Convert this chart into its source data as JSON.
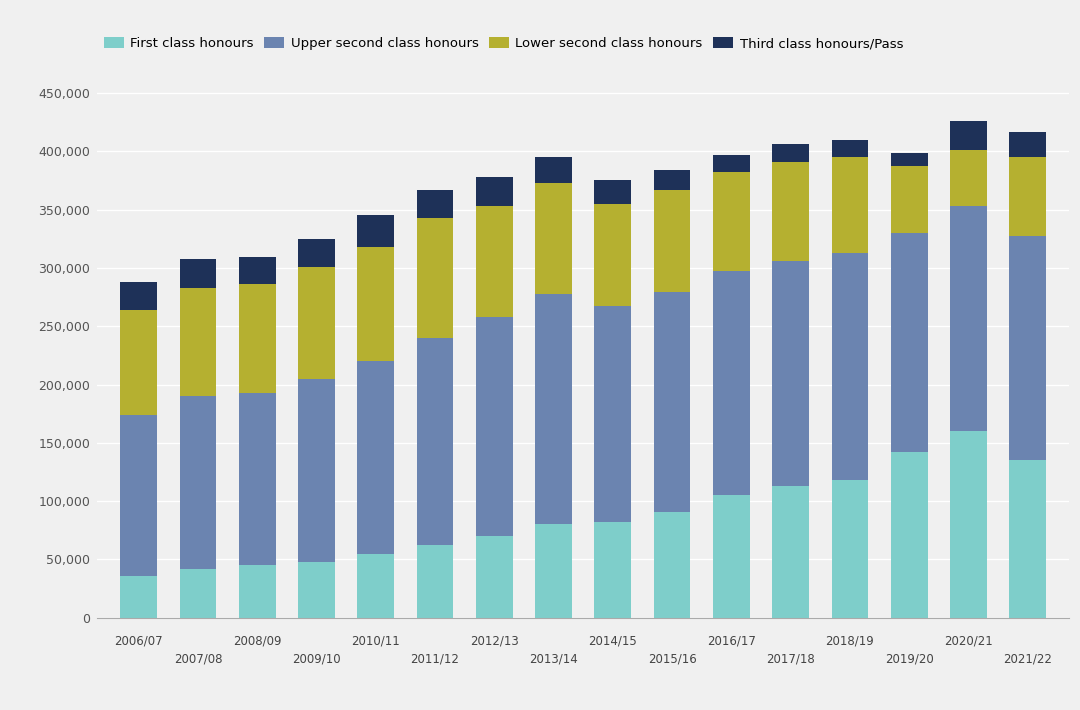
{
  "years": [
    "2006/07",
    "2007/08",
    "2008/09",
    "2009/10",
    "2010/11",
    "2011/12",
    "2012/13",
    "2013/14",
    "2014/15",
    "2015/16",
    "2016/17",
    "2017/18",
    "2018/19",
    "2019/20",
    "2020/21",
    "2021/22"
  ],
  "first_class": [
    36000,
    42000,
    45000,
    48000,
    55000,
    62000,
    70000,
    80000,
    82000,
    91000,
    105000,
    113000,
    118000,
    142000,
    160000,
    135000
  ],
  "upper_second": [
    138000,
    148000,
    148000,
    157000,
    165000,
    178000,
    188000,
    198000,
    185000,
    188000,
    192000,
    193000,
    195000,
    188000,
    193000,
    192000
  ],
  "lower_second": [
    90000,
    93000,
    93000,
    96000,
    98000,
    103000,
    95000,
    95000,
    88000,
    88000,
    85000,
    85000,
    82000,
    57000,
    48000,
    68000
  ],
  "third_class": [
    24000,
    25000,
    23000,
    24000,
    27000,
    24000,
    25000,
    22000,
    20000,
    17000,
    15000,
    15000,
    15000,
    12000,
    25000,
    22000
  ],
  "colors": {
    "first_class": "#7ececa",
    "upper_second": "#6b84b0",
    "lower_second": "#b5b030",
    "third_class": "#1e3158"
  },
  "legend_labels": [
    "First class honours",
    "Upper second class honours",
    "Lower second class honours",
    "Third class honours/Pass"
  ],
  "ylim_max": 475000,
  "yticks": [
    0,
    50000,
    100000,
    150000,
    200000,
    250000,
    300000,
    350000,
    400000,
    450000
  ],
  "background_color": "#f0f0f0",
  "grid_color": "#ffffff",
  "bar_width": 0.62,
  "figsize": [
    10.8,
    7.1
  ],
  "dpi": 100
}
